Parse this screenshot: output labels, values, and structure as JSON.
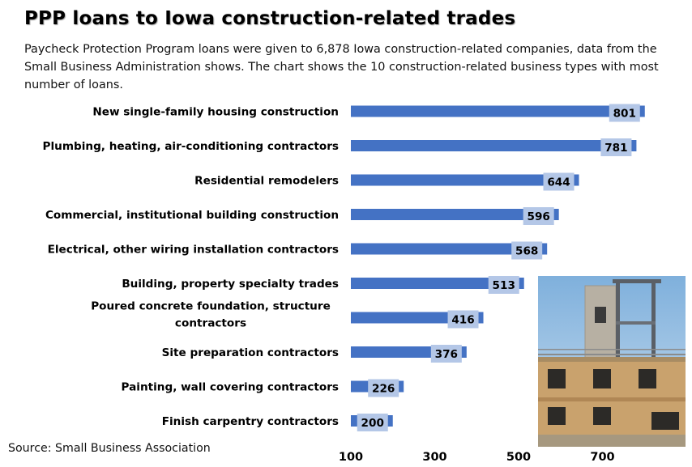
{
  "title": "PPP loans to Iowa construction-related trades",
  "subtitle": "Paycheck Protection Program loans were given to 6,878 Iowa construction-related companies, data from the Small Business Administration shows. The chart shows the 10 construction-related business types with most number of loans.",
  "source": "Source: Small Business Association",
  "colors": {
    "bar": "#4472C4",
    "label_box": "#B4C7E7"
  },
  "chart_data": {
    "type": "bar",
    "orientation": "horizontal",
    "categories": [
      [
        "New single-family housing construction"
      ],
      [
        "Plumbing, heating, air-conditioning contractors"
      ],
      [
        "Residential remodelers"
      ],
      [
        "Commercial, institutional building construction"
      ],
      [
        "Electrical, other wiring installation contractors"
      ],
      [
        "Building, property specialty trades"
      ],
      [
        "Poured concrete foundation, structure",
        "contractors"
      ],
      [
        "Site preparation contractors"
      ],
      [
        "Painting, wall covering contractors"
      ],
      [
        "Finish carpentry contractors"
      ]
    ],
    "values": [
      801,
      781,
      644,
      596,
      568,
      513,
      416,
      376,
      226,
      200
    ],
    "xlim": [
      100,
      800
    ],
    "xticks": [
      100,
      300,
      500,
      700
    ],
    "xlabel": "",
    "ylabel": "",
    "legend": "none",
    "grid": false
  }
}
